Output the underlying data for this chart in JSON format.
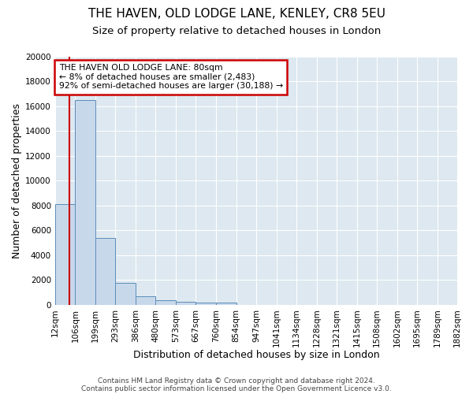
{
  "title1": "THE HAVEN, OLD LODGE LANE, KENLEY, CR8 5EU",
  "title2": "Size of property relative to detached houses in London",
  "xlabel": "Distribution of detached houses by size in London",
  "ylabel": "Number of detached properties",
  "footer1": "Contains HM Land Registry data © Crown copyright and database right 2024.",
  "footer2": "Contains public sector information licensed under the Open Government Licence v3.0.",
  "bin_labels": [
    "12sqm",
    "106sqm",
    "199sqm",
    "293sqm",
    "386sqm",
    "480sqm",
    "573sqm",
    "667sqm",
    "760sqm",
    "854sqm",
    "947sqm",
    "1041sqm",
    "1134sqm",
    "1228sqm",
    "1321sqm",
    "1415sqm",
    "1508sqm",
    "1602sqm",
    "1695sqm",
    "1789sqm",
    "1882sqm"
  ],
  "bar_heights": [
    8100,
    16500,
    5350,
    1750,
    700,
    380,
    230,
    175,
    150,
    0,
    0,
    0,
    0,
    0,
    0,
    0,
    0,
    0,
    0,
    0,
    0
  ],
  "bar_color": "#c8d8eb",
  "bar_edge_color": "#5b8db8",
  "annotation_text": "THE HAVEN OLD LODGE LANE: 80sqm\n← 8% of detached houses are smaller (2,483)\n92% of semi-detached houses are larger (30,188) →",
  "annotation_box_color": "#ffffff",
  "annotation_box_edge": "#cc0000",
  "vline_x": 80,
  "vline_color": "#cc0000",
  "bin_edges_values": [
    12,
    106,
    199,
    293,
    386,
    480,
    573,
    667,
    760,
    854,
    947,
    1041,
    1134,
    1228,
    1321,
    1415,
    1508,
    1602,
    1695,
    1789,
    1882
  ],
  "ylim": [
    0,
    20000
  ],
  "yticks": [
    0,
    2000,
    4000,
    6000,
    8000,
    10000,
    12000,
    14000,
    16000,
    18000,
    20000
  ],
  "fig_bg_color": "#ffffff",
  "plot_bg_color": "#dde8f0",
  "grid_color": "#ffffff",
  "title1_fontsize": 11,
  "title2_fontsize": 9.5,
  "axis_label_fontsize": 9,
  "tick_fontsize": 7.5,
  "footer_fontsize": 6.5,
  "footer_color": "#444444"
}
